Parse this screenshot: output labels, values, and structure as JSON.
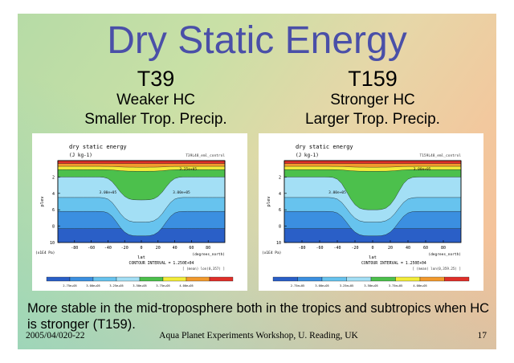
{
  "slide": {
    "title": "Dry Static Energy",
    "columns": [
      {
        "head": "T39",
        "line1": "Weaker HC",
        "line2": "Smaller Trop. Precip."
      },
      {
        "head": "T159",
        "line1": "Stronger HC",
        "line2": "Larger Trop. Precip."
      }
    ],
    "bottom_text": "More stable in the mid-troposphere both in the tropics and subtropics when HC is stronger (T159).",
    "footer": {
      "date": "2005/04/020-22",
      "event": "Aqua Planet Experiments Workshop, U. Reading, UK",
      "page": "17"
    }
  },
  "chart_data": [
    {
      "type": "contour",
      "title": "dry static energy",
      "units": "(J kg-1)",
      "run_label": "T39L48_eml_control",
      "xlabel": "lat",
      "x_units": "(degrees_north)",
      "ylabel": "plev",
      "y_units": "(x1E4 Pa)",
      "x_ticks": [
        "-80",
        "-60",
        "-40",
        "-20",
        "0",
        "20",
        "40",
        "60",
        "80"
      ],
      "y_ticks": [
        "2",
        "4",
        "6",
        "8",
        "10"
      ],
      "contour_labels": [
        "3.25e+05",
        "3.00e+05",
        "3.00e+05"
      ],
      "contour_interval": "CONTOUR INTERVAL = 1.250E+04",
      "stats": "[ (mean) lon(0,357) ]",
      "colorbar_labels": [
        "2.75e+05",
        "3.00e+05",
        "3.25e+05",
        "3.50e+05",
        "3.75e+05",
        "4.00e+05"
      ],
      "colors": [
        "#2a5fc7",
        "#3b8fe0",
        "#67c3ee",
        "#a3dff5",
        "#4cc04c",
        "#f2ec3a",
        "#f29a2e",
        "#e0302a"
      ],
      "tropical_dip_depth": 0.28
    },
    {
      "type": "contour",
      "title": "dry static energy",
      "units": "(J kg-1)",
      "run_label": "T159L48_eml_control",
      "xlabel": "lat",
      "x_units": "(degrees_north)",
      "ylabel": "plev",
      "y_units": "(x1E4 Pa)",
      "x_ticks": [
        "-80",
        "-60",
        "-40",
        "-20",
        "0",
        "20",
        "40",
        "60",
        "80"
      ],
      "y_ticks": [
        "2",
        "4",
        "6",
        "8",
        "10"
      ],
      "contour_labels": [
        "3.00e+05",
        "3.00e+05"
      ],
      "contour_interval": "CONTOUR INTERVAL = 1.250E+04",
      "stats": "[ (mean) lon(0,359.25) ]",
      "colorbar_labels": [
        "2.75e+05",
        "3.00e+05",
        "3.25e+05",
        "3.50e+05",
        "3.75e+05",
        "4.00e+05"
      ],
      "colors": [
        "#2a5fc7",
        "#3b8fe0",
        "#67c3ee",
        "#a3dff5",
        "#4cc04c",
        "#f2ec3a",
        "#f29a2e",
        "#e0302a"
      ],
      "tropical_dip_depth": 0.4
    }
  ]
}
